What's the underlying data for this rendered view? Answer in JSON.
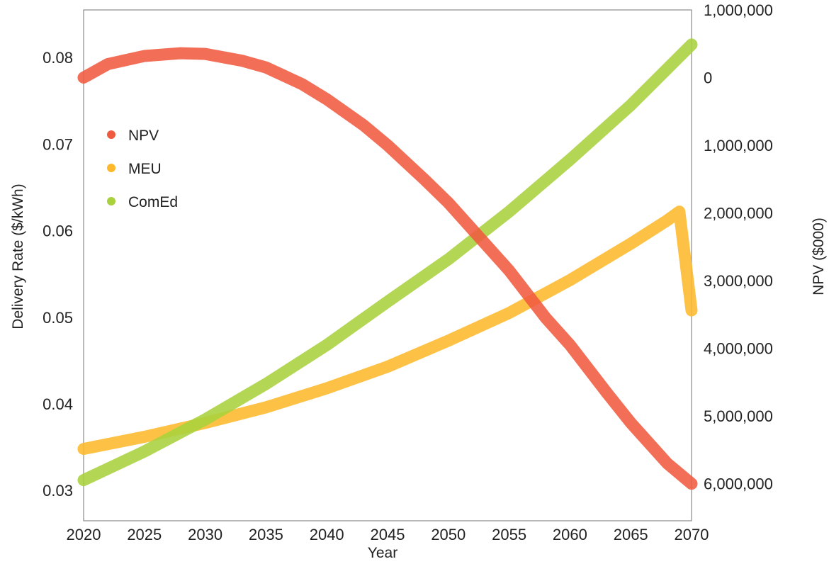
{
  "chart_data": {
    "type": "line",
    "title": "",
    "xlabel": "Year",
    "ylabel": "Delivery Rate ($/kWh)",
    "y2label": "NPV ($000)",
    "xlim": [
      2020,
      2070
    ],
    "ylim": [
      0.0265,
      0.0855
    ],
    "y2lim": [
      6548000,
      -1000000
    ],
    "y2_inverted": true,
    "x_ticks": [
      2020,
      2025,
      2030,
      2035,
      2040,
      2045,
      2050,
      2055,
      2060,
      2065,
      2070
    ],
    "y_ticks": [
      0.03,
      0.04,
      0.05,
      0.06,
      0.07,
      0.08
    ],
    "y_tick_labels": [
      "0.03",
      "0.04",
      "0.05",
      "0.06",
      "0.07",
      "0.08"
    ],
    "y2_ticks": [
      -1000000,
      0,
      1000000,
      2000000,
      3000000,
      4000000,
      5000000,
      6000000
    ],
    "y2_tick_labels": [
      "1,000,000",
      "0",
      "1,000,000",
      "2,000,000",
      "3,000,000",
      "4,000,000",
      "5,000,000",
      "6,000,000"
    ],
    "grid": false,
    "legend_position": "upper-left",
    "series": [
      {
        "name": "NPV",
        "axis": "right",
        "color": "#f05a40",
        "x": [
          2020,
          2022,
          2025,
          2028,
          2030,
          2033,
          2035,
          2038,
          2040,
          2043,
          2045,
          2048,
          2050,
          2053,
          2055,
          2058,
          2060,
          2063,
          2065,
          2068,
          2070
        ],
        "values": [
          0,
          -200000,
          -320000,
          -360000,
          -350000,
          -250000,
          -150000,
          100000,
          320000,
          700000,
          1000000,
          1500000,
          1850000,
          2450000,
          2850000,
          3550000,
          3950000,
          4650000,
          5100000,
          5700000,
          6000000
        ]
      },
      {
        "name": "MEU",
        "axis": "left",
        "color": "#fdb92b",
        "x": [
          2020,
          2025,
          2030,
          2035,
          2040,
          2045,
          2050,
          2055,
          2060,
          2065,
          2068,
          2069,
          2070
        ],
        "values": [
          0.0348,
          0.0362,
          0.0378,
          0.0396,
          0.0418,
          0.0443,
          0.0473,
          0.0505,
          0.0543,
          0.0585,
          0.0612,
          0.0622,
          0.0508
        ]
      },
      {
        "name": "ComEd",
        "axis": "left",
        "color": "#a8d13c",
        "x": [
          2020,
          2025,
          2030,
          2035,
          2040,
          2045,
          2050,
          2055,
          2060,
          2065,
          2070
        ],
        "values": [
          0.0312,
          0.0345,
          0.0382,
          0.0423,
          0.0468,
          0.0518,
          0.0567,
          0.0622,
          0.0682,
          0.0745,
          0.0815
        ]
      }
    ]
  }
}
